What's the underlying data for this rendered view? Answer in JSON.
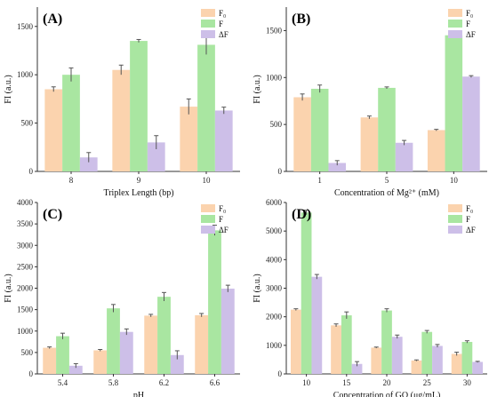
{
  "colors": {
    "F0": "#fbd3ae",
    "F": "#a9e6a1",
    "dF": "#cdbfe8",
    "axis": "#333333",
    "error": "#555555"
  },
  "legend_labels": [
    "F₀",
    "F",
    "ΔF"
  ],
  "chart_data": [
    {
      "panel": "(A)",
      "type": "bar",
      "categories": [
        "8",
        "9",
        "10"
      ],
      "series": [
        {
          "name": "F₀",
          "values": [
            850,
            1050,
            670
          ],
          "errors": [
            25,
            50,
            80
          ]
        },
        {
          "name": "F",
          "values": [
            1000,
            1350,
            1310
          ],
          "errors": [
            70,
            15,
            100
          ]
        },
        {
          "name": "ΔF",
          "values": [
            145,
            300,
            630
          ],
          "errors": [
            50,
            70,
            35
          ]
        }
      ],
      "xlabel": "Triplex Length (bp)",
      "ylabel": "FI (a.u.)",
      "ylim": [
        0,
        1700
      ],
      "yticks": [
        0,
        500,
        1000,
        1500
      ],
      "legend": "top-right"
    },
    {
      "panel": "(B)",
      "type": "bar",
      "categories": [
        "1",
        "5",
        "10"
      ],
      "series": [
        {
          "name": "F₀",
          "values": [
            790,
            575,
            440
          ],
          "errors": [
            35,
            15,
            8
          ]
        },
        {
          "name": "F",
          "values": [
            880,
            890,
            1450
          ],
          "errors": [
            40,
            10,
            15
          ]
        },
        {
          "name": "ΔF",
          "values": [
            90,
            305,
            1010
          ],
          "errors": [
            25,
            25,
            10
          ]
        }
      ],
      "xlabel": "Concentration of Mg²⁺ (mM)",
      "ylabel": "FI (a.u.)",
      "ylim": [
        0,
        1750
      ],
      "yticks": [
        0,
        500,
        1000,
        1500
      ],
      "legend": "top-right"
    },
    {
      "panel": "(C)",
      "type": "bar",
      "categories": [
        "5.4",
        "5.8",
        "6.2",
        "6.6"
      ],
      "series": [
        {
          "name": "F₀",
          "values": [
            610,
            550,
            1360,
            1370
          ],
          "errors": [
            20,
            20,
            30,
            40
          ]
        },
        {
          "name": "F",
          "values": [
            880,
            1530,
            1800,
            3350
          ],
          "errors": [
            70,
            90,
            100,
            120
          ]
        },
        {
          "name": "ΔF",
          "values": [
            190,
            980,
            440,
            1990
          ],
          "errors": [
            50,
            70,
            100,
            80
          ]
        }
      ],
      "xlabel": "pH",
      "ylabel": "FI (a.u.)",
      "ylim": [
        0,
        4000
      ],
      "yticks": [
        0,
        500,
        1000,
        1500,
        2000,
        2500,
        3000,
        3500,
        4000
      ],
      "legend": "top-right"
    },
    {
      "panel": "(D)",
      "type": "bar",
      "categories": [
        "10",
        "15",
        "20",
        "25",
        "30"
      ],
      "series": [
        {
          "name": "F₀",
          "values": [
            2250,
            1700,
            920,
            470,
            700
          ],
          "errors": [
            30,
            50,
            20,
            20,
            60
          ]
        },
        {
          "name": "F",
          "values": [
            5650,
            2050,
            2220,
            1470,
            1120
          ],
          "errors": [
            80,
            120,
            60,
            50,
            40
          ]
        },
        {
          "name": "ΔF",
          "values": [
            3400,
            350,
            1300,
            980,
            420
          ],
          "errors": [
            80,
            80,
            60,
            50,
            20
          ]
        }
      ],
      "xlabel": "Concentration of GO (μg/mL)",
      "ylabel": "FI (a.u.)",
      "ylim": [
        0,
        6000
      ],
      "yticks": [
        0,
        1000,
        2000,
        3000,
        4000,
        5000,
        6000
      ],
      "legend": "top-right"
    }
  ]
}
